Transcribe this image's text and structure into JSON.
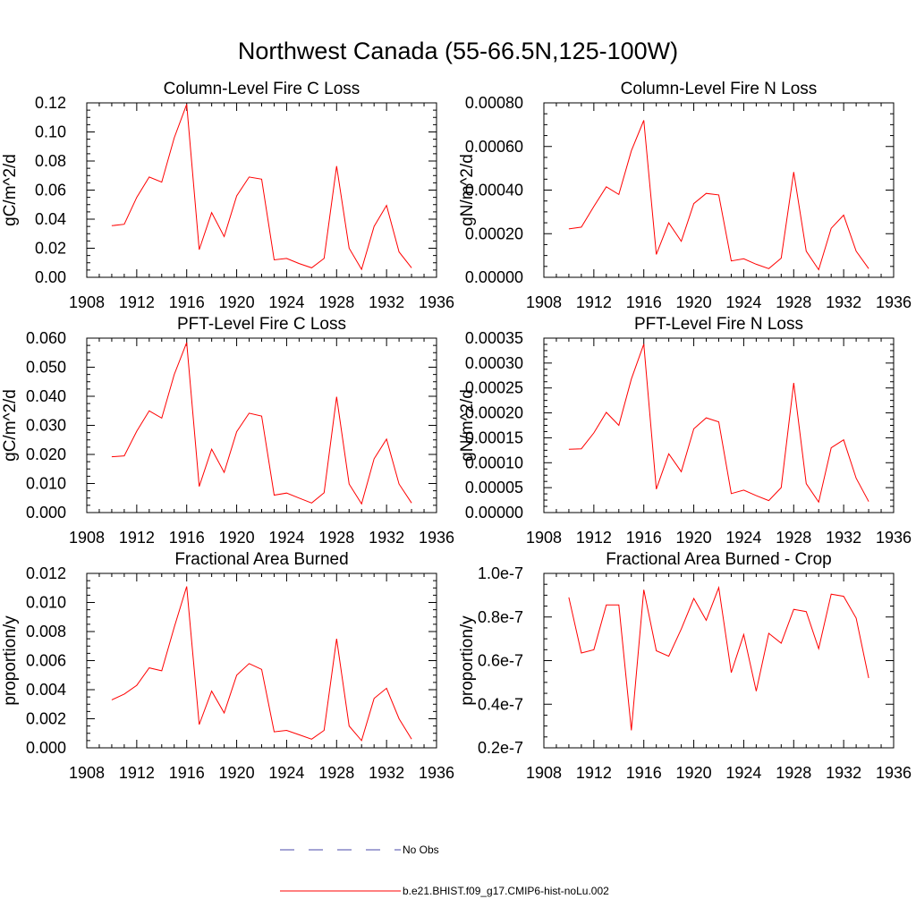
{
  "title": "Northwest Canada (55-66.5N,125-100W)",
  "legend": {
    "items": [
      {
        "label": "No Obs",
        "style": "dashed",
        "color": "#4a4aa8"
      },
      {
        "label": "b.e21.BHIST.f09_g17.CMIP6-hist-noLu.002",
        "style": "solid",
        "color": "#ff0000"
      }
    ]
  },
  "colors": {
    "series": "#ff0000",
    "axis": "#000000",
    "no_obs": "#4a4aa8"
  },
  "chart_data": [
    {
      "type": "line",
      "title": "Column-Level Fire C Loss",
      "ylabel": "gC/m^2/d",
      "xlim": [
        1908,
        1936
      ],
      "xticks": [
        "1908",
        "1912",
        "1916",
        "1920",
        "1924",
        "1928",
        "1932",
        "1936"
      ],
      "ylim": [
        0,
        0.12
      ],
      "yticks": [
        "0.00",
        "0.02",
        "0.04",
        "0.06",
        "0.08",
        "0.10",
        "0.12"
      ],
      "x": [
        1910,
        1911,
        1912,
        1913,
        1914,
        1915,
        1916,
        1917,
        1918,
        1919,
        1920,
        1921,
        1922,
        1923,
        1924,
        1925,
        1926,
        1927,
        1928,
        1929,
        1930,
        1931,
        1932,
        1933,
        1934
      ],
      "series": [
        {
          "name": "b.e21.BHIST.f09_g17.CMIP6-hist-noLu.002",
          "values": [
            0.0355,
            0.0365,
            0.055,
            0.069,
            0.0655,
            0.096,
            0.119,
            0.019,
            0.0445,
            0.028,
            0.056,
            0.069,
            0.0675,
            0.012,
            0.013,
            0.0095,
            0.0065,
            0.013,
            0.0765,
            0.02,
            0.0055,
            0.035,
            0.0495,
            0.0175,
            0.0065
          ]
        }
      ]
    },
    {
      "type": "line",
      "title": "Column-Level Fire N Loss",
      "ylabel": "gN/m^2/d",
      "xlim": [
        1908,
        1936
      ],
      "xticks": [
        "1908",
        "1912",
        "1916",
        "1920",
        "1924",
        "1928",
        "1932",
        "1936"
      ],
      "ylim": [
        0,
        0.0008
      ],
      "yticks": [
        "0.00000",
        "0.00020",
        "0.00040",
        "0.00060",
        "0.00080"
      ],
      "x": [
        1910,
        1911,
        1912,
        1913,
        1914,
        1915,
        1916,
        1917,
        1918,
        1919,
        1920,
        1921,
        1922,
        1923,
        1924,
        1925,
        1926,
        1927,
        1928,
        1929,
        1930,
        1931,
        1932,
        1933,
        1934
      ],
      "series": [
        {
          "name": "b.e21.BHIST.f09_g17.CMIP6-hist-noLu.002",
          "values": [
            0.000222,
            0.00023,
            0.000325,
            0.000415,
            0.00038,
            0.00058,
            0.00072,
            0.000105,
            0.00025,
            0.000165,
            0.000338,
            0.000385,
            0.000378,
            7.5e-05,
            8.5e-05,
            6e-05,
            4e-05,
            8.8e-05,
            0.000483,
            0.00012,
            3.5e-05,
            0.000225,
            0.000285,
            0.00012,
            4e-05
          ]
        }
      ]
    },
    {
      "type": "line",
      "title": "PFT-Level Fire C Loss",
      "ylabel": "gC/m^2/d",
      "xlim": [
        1908,
        1936
      ],
      "xticks": [
        "1908",
        "1912",
        "1916",
        "1920",
        "1924",
        "1928",
        "1932",
        "1936"
      ],
      "ylim": [
        0,
        0.06
      ],
      "yticks": [
        "0.000",
        "0.010",
        "0.020",
        "0.030",
        "0.040",
        "0.050",
        "0.060"
      ],
      "x": [
        1910,
        1911,
        1912,
        1913,
        1914,
        1915,
        1916,
        1917,
        1918,
        1919,
        1920,
        1921,
        1922,
        1923,
        1924,
        1925,
        1926,
        1927,
        1928,
        1929,
        1930,
        1931,
        1932,
        1933,
        1934
      ],
      "series": [
        {
          "name": "b.e21.BHIST.f09_g17.CMIP6-hist-noLu.002",
          "values": [
            0.0192,
            0.0195,
            0.028,
            0.035,
            0.0325,
            0.0475,
            0.0585,
            0.009,
            0.0218,
            0.0138,
            0.0278,
            0.0342,
            0.0332,
            0.006,
            0.0067,
            0.005,
            0.0033,
            0.0068,
            0.0398,
            0.0098,
            0.003,
            0.0185,
            0.0253,
            0.0098,
            0.0033
          ]
        }
      ]
    },
    {
      "type": "line",
      "title": "PFT-Level Fire N Loss",
      "ylabel": "gN/m^2/d",
      "xlim": [
        1908,
        1936
      ],
      "xticks": [
        "1908",
        "1912",
        "1916",
        "1920",
        "1924",
        "1928",
        "1932",
        "1936"
      ],
      "ylim": [
        0,
        0.00035
      ],
      "yticks": [
        "0.00000",
        "0.00005",
        "0.00010",
        "0.00015",
        "0.00020",
        "0.00025",
        "0.00030",
        "0.00035"
      ],
      "x": [
        1910,
        1911,
        1912,
        1913,
        1914,
        1915,
        1916,
        1917,
        1918,
        1919,
        1920,
        1921,
        1922,
        1923,
        1924,
        1925,
        1926,
        1927,
        1928,
        1929,
        1930,
        1931,
        1932,
        1933,
        1934
      ],
      "series": [
        {
          "name": "b.e21.BHIST.f09_g17.CMIP6-hist-noLu.002",
          "values": [
            0.000127,
            0.000128,
            0.00016,
            0.000201,
            0.000175,
            0.000268,
            0.000338,
            4.7e-05,
            0.000118,
            8.2e-05,
            0.000168,
            0.00019,
            0.000182,
            3.8e-05,
            4.5e-05,
            3.4e-05,
            2.4e-05,
            5e-05,
            0.00026,
            5.8e-05,
            2.1e-05,
            0.00013,
            0.000146,
            6.9e-05,
            2.2e-05
          ]
        }
      ]
    },
    {
      "type": "line",
      "title": "Fractional Area Burned",
      "ylabel": "proportion/y",
      "xlim": [
        1908,
        1936
      ],
      "xticks": [
        "1908",
        "1912",
        "1916",
        "1920",
        "1924",
        "1928",
        "1932",
        "1936"
      ],
      "ylim": [
        0,
        0.012
      ],
      "yticks": [
        "0.000",
        "0.002",
        "0.004",
        "0.006",
        "0.008",
        "0.010",
        "0.012"
      ],
      "x": [
        1910,
        1911,
        1912,
        1913,
        1914,
        1915,
        1916,
        1917,
        1918,
        1919,
        1920,
        1921,
        1922,
        1923,
        1924,
        1925,
        1926,
        1927,
        1928,
        1929,
        1930,
        1931,
        1932,
        1933,
        1934
      ],
      "series": [
        {
          "name": "b.e21.BHIST.f09_g17.CMIP6-hist-noLu.002",
          "values": [
            0.0033,
            0.0037,
            0.0043,
            0.0055,
            0.0053,
            0.0083,
            0.0111,
            0.0016,
            0.0039,
            0.0024,
            0.005,
            0.0058,
            0.0054,
            0.0011,
            0.0012,
            0.0009,
            0.0006,
            0.0012,
            0.0075,
            0.0015,
            0.0005,
            0.0034,
            0.0041,
            0.002,
            0.0006
          ]
        }
      ]
    },
    {
      "type": "line",
      "title": "Fractional Area Burned - Crop",
      "ylabel": "proportion/y",
      "xlim": [
        1908,
        1936
      ],
      "xticks": [
        "1908",
        "1912",
        "1916",
        "1920",
        "1924",
        "1928",
        "1932",
        "1936"
      ],
      "ylim": [
        2e-08,
        1e-07
      ],
      "yticks": [
        "0.2e-7",
        "0.4e-7",
        "0.6e-7",
        "0.8e-7",
        "1.0e-7"
      ],
      "x": [
        1910,
        1911,
        1912,
        1913,
        1914,
        1915,
        1916,
        1917,
        1918,
        1919,
        1920,
        1921,
        1922,
        1923,
        1924,
        1925,
        1926,
        1927,
        1928,
        1929,
        1930,
        1931,
        1932,
        1933,
        1934
      ],
      "series": [
        {
          "name": "b.e21.BHIST.f09_g17.CMIP6-hist-noLu.002",
          "values": [
            8.9e-08,
            6.35e-08,
            6.5e-08,
            8.55e-08,
            8.55e-08,
            2.8e-08,
            9.25e-08,
            6.45e-08,
            6.2e-08,
            7.45e-08,
            8.85e-08,
            7.85e-08,
            9.35e-08,
            5.45e-08,
            7.2e-08,
            4.6e-08,
            7.25e-08,
            6.8e-08,
            8.35e-08,
            8.25e-08,
            6.55e-08,
            9.05e-08,
            8.95e-08,
            7.95e-08,
            5.2e-08
          ]
        }
      ]
    }
  ]
}
